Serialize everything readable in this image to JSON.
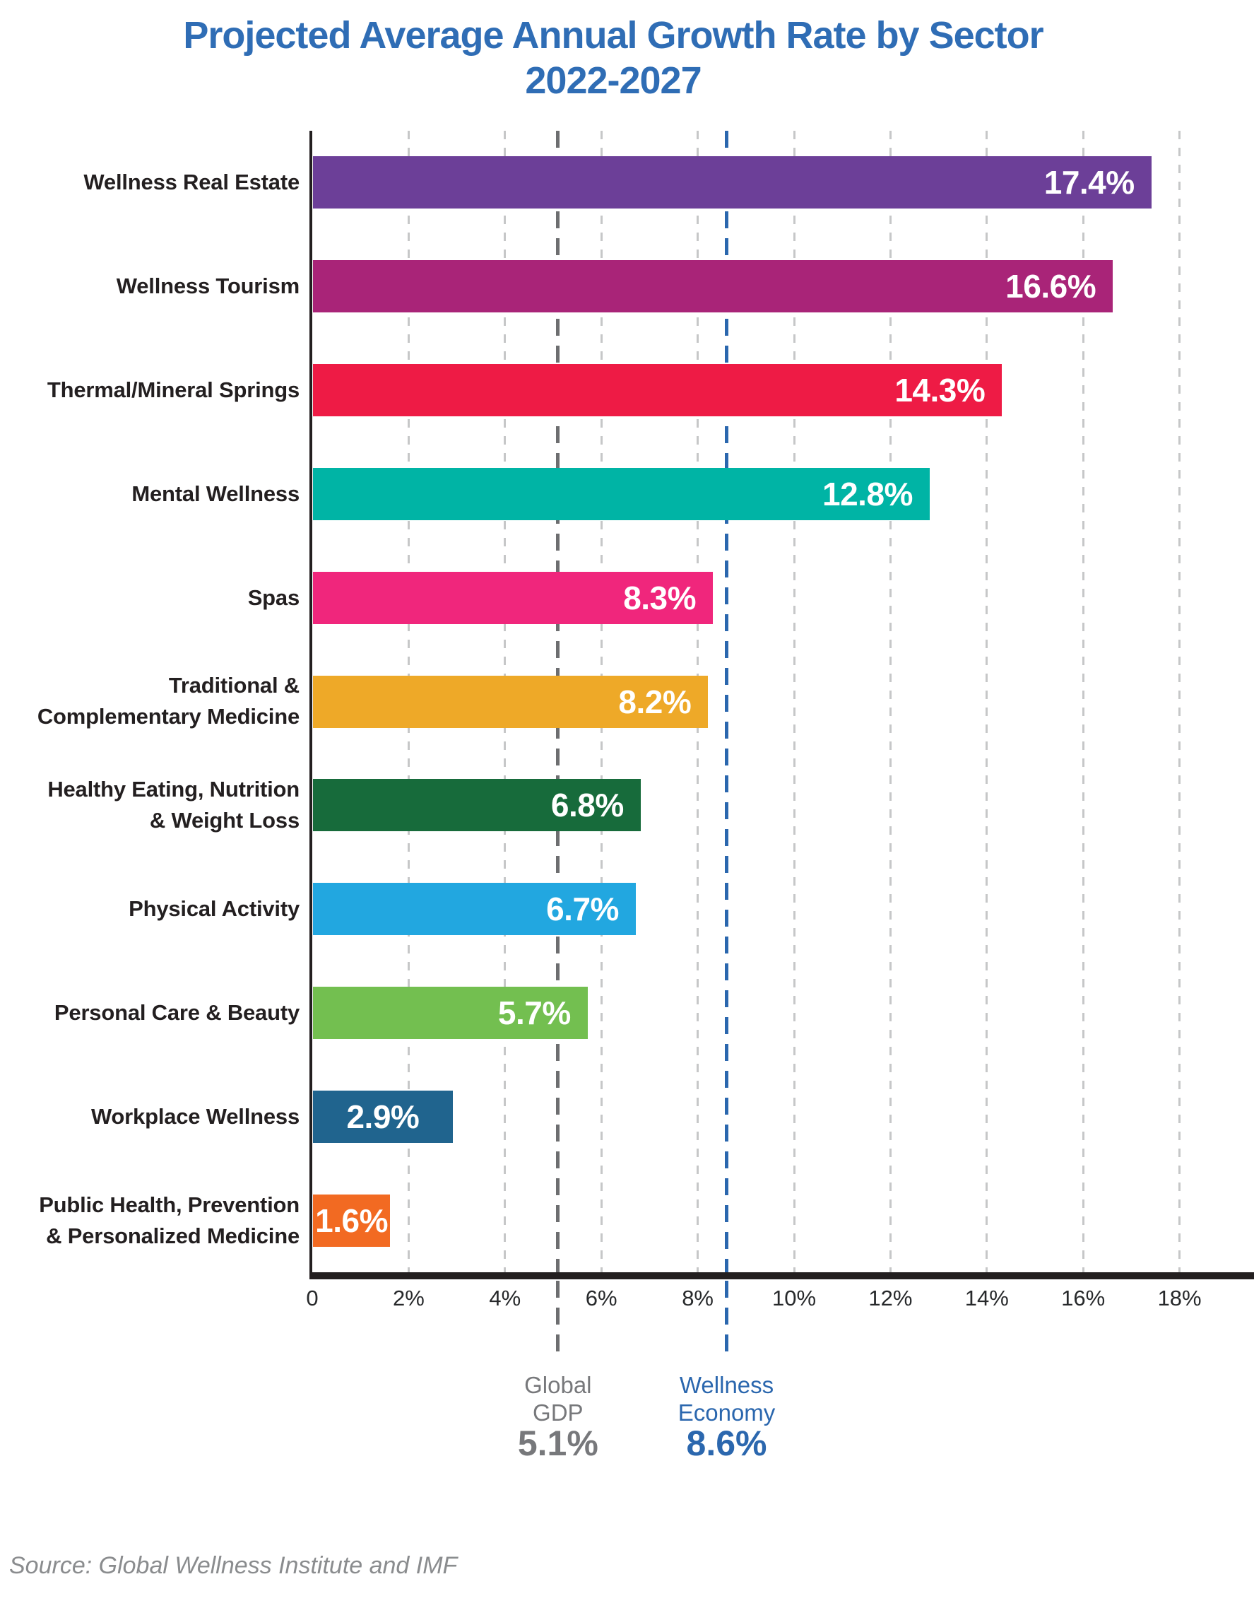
{
  "title": {
    "line1": "Projected Average Annual Growth Rate by Sector",
    "line2": "2022-2027",
    "color": "#2f6db5"
  },
  "source": "Source: Global Wellness Institute and IMF",
  "chart_data": {
    "type": "bar",
    "orientation": "horizontal",
    "title": "Projected Average Annual Growth Rate by Sector 2022-2027",
    "xlabel": "",
    "ylabel": "",
    "xlim": [
      0,
      18.6
    ],
    "grid": "vertical-dashed",
    "grid_color": "#c6c7c8",
    "axis_color": "#231f20",
    "xticks": [
      {
        "value": 0,
        "label": "0"
      },
      {
        "value": 2,
        "label": "2%"
      },
      {
        "value": 4,
        "label": "4%"
      },
      {
        "value": 6,
        "label": "6%"
      },
      {
        "value": 8,
        "label": "8%"
      },
      {
        "value": 10,
        "label": "10%"
      },
      {
        "value": 12,
        "label": "12%"
      },
      {
        "value": 14,
        "label": "14%"
      },
      {
        "value": 16,
        "label": "16%"
      },
      {
        "value": 18,
        "label": "18%"
      }
    ],
    "categories": [
      "Wellness Real Estate",
      "Wellness Tourism",
      "Thermal/Mineral Springs",
      "Mental Wellness",
      "Spas",
      "Traditional & Complementary Medicine",
      "Healthy Eating, Nutrition & Weight Loss",
      "Physical Activity",
      "Personal Care & Beauty",
      "Workplace Wellness",
      "Public Health, Prevention & Personalized Medicine"
    ],
    "category_label_lines": [
      [
        "Wellness Real Estate"
      ],
      [
        "Wellness Tourism"
      ],
      [
        "Thermal/Mineral Springs"
      ],
      [
        "Mental Wellness"
      ],
      [
        "Spas"
      ],
      [
        "Traditional &",
        "Complementary Medicine"
      ],
      [
        "Healthy Eating, Nutrition",
        "& Weight Loss"
      ],
      [
        "Physical Activity"
      ],
      [
        "Personal Care & Beauty"
      ],
      [
        "Workplace Wellness"
      ],
      [
        "Public Health, Prevention",
        "& Personalized Medicine"
      ]
    ],
    "values": [
      17.4,
      16.6,
      14.3,
      12.8,
      8.3,
      8.2,
      6.8,
      6.7,
      5.7,
      2.9,
      1.6
    ],
    "value_labels": [
      "17.4%",
      "16.6%",
      "14.3%",
      "12.8%",
      "8.3%",
      "8.2%",
      "6.8%",
      "6.7%",
      "5.7%",
      "2.9%",
      "1.6%"
    ],
    "bar_colors": [
      "#6c3f98",
      "#a92478",
      "#ee1b45",
      "#00b4a5",
      "#f0267c",
      "#eea928",
      "#176b3b",
      "#22a7e0",
      "#73bf50",
      "#20648e",
      "#f26a22"
    ],
    "value_text_color": "#ffffff",
    "reference_lines": [
      {
        "value": 5.1,
        "label_lines": [
          "Global",
          "GDP"
        ],
        "value_label": "5.1%",
        "line_color": "#6d6e70",
        "text_color": "#77787b"
      },
      {
        "value": 8.6,
        "label_lines": [
          "Wellness",
          "Economy"
        ],
        "value_label": "8.6%",
        "line_color": "#2b67ae",
        "text_color": "#2b67ae"
      }
    ]
  }
}
